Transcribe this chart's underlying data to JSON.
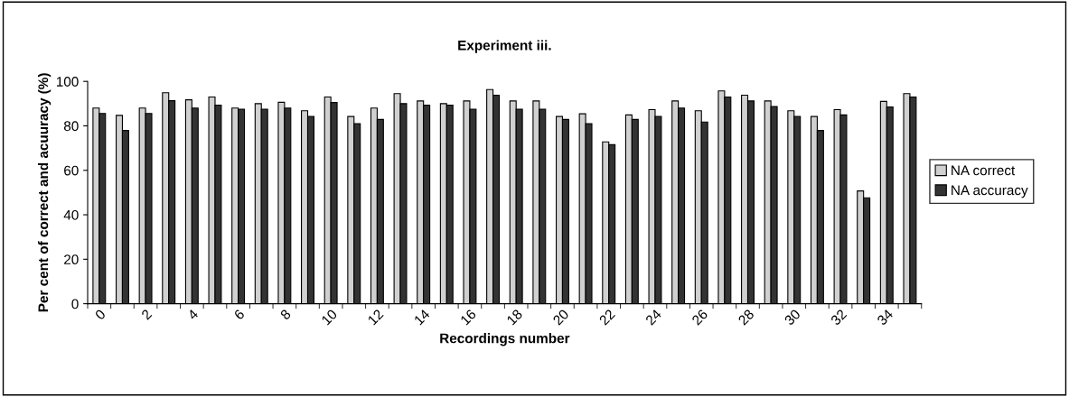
{
  "chart_data": {
    "type": "bar",
    "title": "Experiment iii.",
    "xlabel": "Recordings number",
    "ylabel": "Per cent of correct and acuuracy (%)",
    "categories": [
      "0",
      null,
      "2",
      null,
      "4",
      null,
      "6",
      null,
      "8",
      null,
      "10",
      null,
      "12",
      null,
      "14",
      null,
      "16",
      null,
      "18",
      null,
      "20",
      null,
      "22",
      null,
      "24",
      null,
      "26",
      null,
      "28",
      null,
      "30",
      null,
      "32",
      null,
      "34",
      null
    ],
    "series": [
      {
        "name": "NA correct",
        "color": "#d0d0d0",
        "values": [
          88.0,
          84.7,
          88.0,
          94.9,
          91.7,
          93.0,
          88.0,
          90.0,
          90.6,
          86.8,
          93.0,
          84.2,
          88.0,
          94.5,
          91.2,
          90.0,
          91.2,
          96.3,
          91.2,
          91.2,
          84.2,
          85.4,
          72.8,
          84.9,
          87.3,
          91.2,
          86.8,
          95.7,
          93.8,
          91.2,
          86.8,
          84.2,
          87.3,
          50.7,
          91.0,
          94.5
        ]
      },
      {
        "name": "NA accuracy",
        "color": "#333333",
        "values": [
          85.6,
          77.9,
          85.6,
          91.3,
          88.0,
          89.3,
          87.5,
          87.5,
          88.0,
          84.2,
          90.5,
          81.0,
          82.9,
          90.0,
          89.3,
          89.3,
          87.5,
          93.8,
          87.5,
          87.5,
          82.9,
          81.0,
          71.5,
          82.9,
          84.2,
          88.0,
          81.7,
          93.0,
          91.2,
          88.7,
          84.2,
          77.9,
          84.9,
          47.6,
          88.5,
          93.0
        ]
      }
    ],
    "ylim": [
      0,
      100
    ],
    "yticks": [
      0,
      20,
      40,
      60,
      80,
      100
    ],
    "grid": false,
    "legend": "right"
  }
}
